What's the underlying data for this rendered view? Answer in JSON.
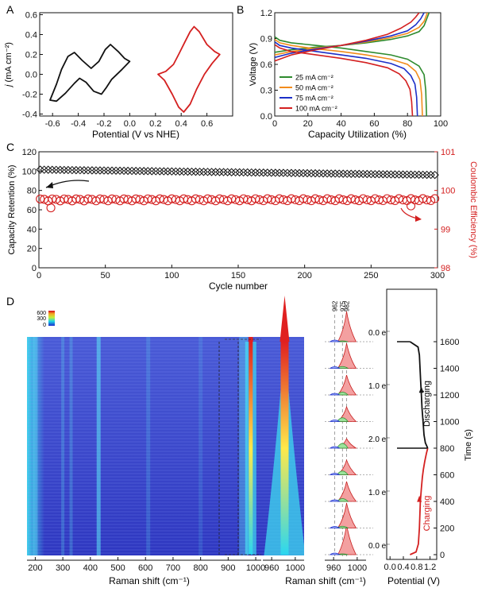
{
  "chart_data": [
    {
      "panel": "A",
      "type": "line",
      "xlabel": "Potential (V vs NHE)",
      "ylabel_prefix": "j",
      "ylabel_rest": " (mA cm⁻²)",
      "xlim": [
        -0.7,
        0.8
      ],
      "ylim": [
        -0.42,
        0.62
      ],
      "xticks": [
        "-0.6",
        "-0.4",
        "-0.2",
        "0.0",
        "0.2",
        "0.4",
        "0.6"
      ],
      "xtick_values": [
        -0.6,
        -0.4,
        -0.2,
        0.0,
        0.2,
        0.4,
        0.6
      ],
      "yticks": [
        "-0.4",
        "-0.2",
        "0.0",
        "0.2",
        "0.4",
        "0.6"
      ],
      "ytick_values": [
        -0.4,
        -0.2,
        0.0,
        0.2,
        0.4,
        0.6
      ],
      "series": [
        {
          "color": "#111111",
          "x": [
            0.0,
            -0.06,
            -0.14,
            -0.18,
            -0.22,
            -0.28,
            -0.34,
            -0.39,
            -0.43,
            -0.5,
            -0.57,
            -0.62,
            -0.57,
            -0.53,
            -0.48,
            -0.43,
            -0.37,
            -0.3,
            -0.24,
            -0.19,
            -0.15,
            -0.09,
            -0.04,
            0.0
          ],
          "y": [
            0.13,
            0.05,
            -0.05,
            -0.13,
            -0.2,
            -0.17,
            -0.08,
            -0.04,
            -0.09,
            -0.19,
            -0.27,
            -0.26,
            -0.1,
            0.05,
            0.18,
            0.22,
            0.14,
            0.06,
            0.13,
            0.25,
            0.3,
            0.23,
            0.16,
            0.13
          ]
        },
        {
          "color": "#d42020",
          "x": [
            0.7,
            0.64,
            0.58,
            0.52,
            0.47,
            0.42,
            0.38,
            0.33,
            0.27,
            0.22,
            0.28,
            0.34,
            0.38,
            0.43,
            0.47,
            0.5,
            0.54,
            0.6,
            0.66,
            0.7
          ],
          "y": [
            0.2,
            0.11,
            0.0,
            -0.15,
            -0.3,
            -0.38,
            -0.33,
            -0.2,
            -0.06,
            0.0,
            0.03,
            0.1,
            0.2,
            0.33,
            0.43,
            0.48,
            0.43,
            0.3,
            0.23,
            0.2
          ]
        }
      ]
    },
    {
      "panel": "B",
      "type": "line",
      "xlabel": "Capacity Utilization (%)",
      "ylabel": "Voltage (V)",
      "xlim": [
        0,
        100
      ],
      "ylim": [
        0.0,
        1.2
      ],
      "xticks": [
        "0",
        "20",
        "40",
        "60",
        "80",
        "100"
      ],
      "xtick_values": [
        0,
        20,
        40,
        60,
        80,
        100
      ],
      "yticks": [
        "0.0",
        "0.3",
        "0.6",
        "0.9",
        "1.2"
      ],
      "ytick_values": [
        0.0,
        0.3,
        0.6,
        0.9,
        1.2
      ],
      "legend_position": "bottom-left",
      "series": [
        {
          "name": "25 mA cm⁻²",
          "color": "#2e8b2e",
          "charge": {
            "x": [
              0,
              10,
              25,
              40,
              55,
              70,
              80,
              87,
              90,
              92,
              93
            ],
            "y": [
              0.74,
              0.77,
              0.8,
              0.82,
              0.85,
              0.89,
              0.93,
              0.98,
              1.05,
              1.15,
              1.2
            ]
          },
          "discharge": {
            "x": [
              0,
              3,
              10,
              25,
              40,
              55,
              70,
              80,
              87,
              90,
              91,
              91.5
            ],
            "y": [
              0.92,
              0.88,
              0.85,
              0.82,
              0.79,
              0.75,
              0.71,
              0.66,
              0.58,
              0.48,
              0.3,
              0.0
            ]
          }
        },
        {
          "name": "50 mA cm⁻²",
          "color": "#f28c1c",
          "charge": {
            "x": [
              0,
              10,
              25,
              40,
              55,
              70,
              80,
              87,
              90,
              92
            ],
            "y": [
              0.71,
              0.75,
              0.79,
              0.82,
              0.86,
              0.91,
              0.96,
              1.03,
              1.1,
              1.2
            ]
          },
          "discharge": {
            "x": [
              0,
              3,
              10,
              25,
              40,
              55,
              70,
              80,
              85,
              87.5,
              88.5,
              89
            ],
            "y": [
              0.89,
              0.85,
              0.82,
              0.78,
              0.75,
              0.71,
              0.66,
              0.6,
              0.52,
              0.42,
              0.25,
              0.0
            ]
          }
        },
        {
          "name": "75 mA cm⁻²",
          "color": "#1c2fc8",
          "charge": {
            "x": [
              0,
              10,
              25,
              40,
              55,
              70,
              80,
              85,
              88,
              90
            ],
            "y": [
              0.68,
              0.73,
              0.78,
              0.82,
              0.87,
              0.93,
              0.99,
              1.06,
              1.13,
              1.2
            ]
          },
          "discharge": {
            "x": [
              0,
              3,
              10,
              25,
              40,
              55,
              70,
              78,
              82,
              84.5,
              85.5,
              86
            ],
            "y": [
              0.86,
              0.82,
              0.79,
              0.75,
              0.71,
              0.67,
              0.61,
              0.55,
              0.47,
              0.37,
              0.22,
              0.0
            ]
          }
        },
        {
          "name": "100 mA cm⁻²",
          "color": "#d42020",
          "charge": {
            "x": [
              0,
              10,
              25,
              40,
              55,
              68,
              76,
              82,
              85,
              87
            ],
            "y": [
              0.64,
              0.71,
              0.77,
              0.82,
              0.88,
              0.95,
              1.02,
              1.09,
              1.15,
              1.2
            ]
          },
          "discharge": {
            "x": [
              0,
              3,
              10,
              25,
              40,
              55,
              68,
              75,
              79,
              81.5,
              82.5,
              83
            ],
            "y": [
              0.83,
              0.79,
              0.75,
              0.71,
              0.67,
              0.62,
              0.56,
              0.49,
              0.41,
              0.31,
              0.17,
              0.0
            ]
          }
        }
      ]
    },
    {
      "panel": "C",
      "type": "scatter",
      "xlabel": "Cycle number",
      "ylabel_left": "Capacity Retention (%)",
      "ylabel_right": "Coulombic Efficiency (%)",
      "xlim": [
        0,
        300
      ],
      "ylim_left": [
        0,
        120
      ],
      "ylim_right": [
        98,
        101
      ],
      "xticks": [
        "0",
        "50",
        "100",
        "150",
        "200",
        "250",
        "300"
      ],
      "xtick_values": [
        0,
        50,
        100,
        150,
        200,
        250,
        300
      ],
      "yticks_left": [
        "0",
        "20",
        "40",
        "60",
        "80",
        "100",
        "120"
      ],
      "ytick_values_left": [
        0,
        20,
        40,
        60,
        80,
        100,
        120
      ],
      "yticks_right": [
        "98",
        "99",
        "100",
        "101"
      ],
      "ytick_values_right": [
        98,
        99,
        100,
        101
      ],
      "left_color": "#111111",
      "right_color": "#d42020",
      "retention": {
        "start": 101.5,
        "end": 96.0,
        "every": 3
      },
      "efficiency": {
        "base": 99.76,
        "every": 3,
        "dips": [
          {
            "cycle": 9,
            "value": 99.55
          },
          {
            "cycle": 280,
            "value": 99.6
          }
        ]
      }
    },
    {
      "panel": "D",
      "type": "heatmap",
      "xlabel": "Raman shift (cm⁻¹)",
      "xticks_main": [
        "200",
        "300",
        "400",
        "500",
        "600",
        "700",
        "800",
        "900",
        "1000"
      ],
      "xtick_values_main": [
        200,
        300,
        400,
        500,
        600,
        700,
        800,
        900,
        1000
      ],
      "xlim_main": [
        170,
        1020
      ],
      "xticks_zoom": [
        "960",
        "1000"
      ],
      "xtick_values_zoom": [
        960,
        1000
      ],
      "xlim_zoom": [
        945,
        1015
      ],
      "xticks_spec": [
        "960",
        "1000"
      ],
      "xtick_values_spec": [
        960,
        1000
      ],
      "xlim_spec": [
        945,
        1015
      ],
      "colorbar_labels": [
        "600",
        "300",
        "0"
      ],
      "peak_labels": [
        "962",
        "975",
        "982"
      ],
      "electron_labels": [
        "0.0 e⁻",
        "1.0 e⁻",
        "2.0 e⁻",
        "1.0 e⁻",
        "0.0 e⁻"
      ],
      "potential_xlabel": "Potential (V)",
      "potential_xticks": [
        "0.0",
        "0.4",
        "0.8",
        "1.2"
      ],
      "potential_xtick_values": [
        0.0,
        0.4,
        0.8,
        1.2
      ],
      "potential_xlim": [
        -0.1,
        1.4
      ],
      "time_label": "Time (s)",
      "time_ticks": [
        "0",
        "200",
        "400",
        "600",
        "800",
        "1000",
        "1200",
        "1400",
        "1600"
      ],
      "time_tick_values": [
        0,
        200,
        400,
        600,
        800,
        1000,
        1200,
        1400,
        1600
      ],
      "time_lim": [
        0,
        1600
      ],
      "charging_label": "Charging",
      "discharging_label": "Discharging",
      "charging_color": "#d42020",
      "discharging_color": "#111111",
      "charging_curve": {
        "time": [
          0,
          20,
          80,
          200,
          400,
          500,
          580,
          640,
          700,
          760,
          800
        ],
        "potential": [
          0.6,
          0.78,
          0.85,
          0.88,
          0.91,
          0.94,
          0.97,
          1.0,
          1.04,
          1.09,
          1.13
        ]
      },
      "discharging_curve": {
        "time": [
          800,
          840,
          900,
          1000,
          1100,
          1200,
          1300,
          1400,
          1500,
          1560,
          1600
        ],
        "potential": [
          1.13,
          1.06,
          1.02,
          0.99,
          0.96,
          0.94,
          0.92,
          0.9,
          0.88,
          0.84,
          0.6
        ]
      },
      "spectra_times": [
        0,
        200,
        400,
        600,
        800,
        1000,
        1200,
        1400,
        1600
      ]
    }
  ]
}
